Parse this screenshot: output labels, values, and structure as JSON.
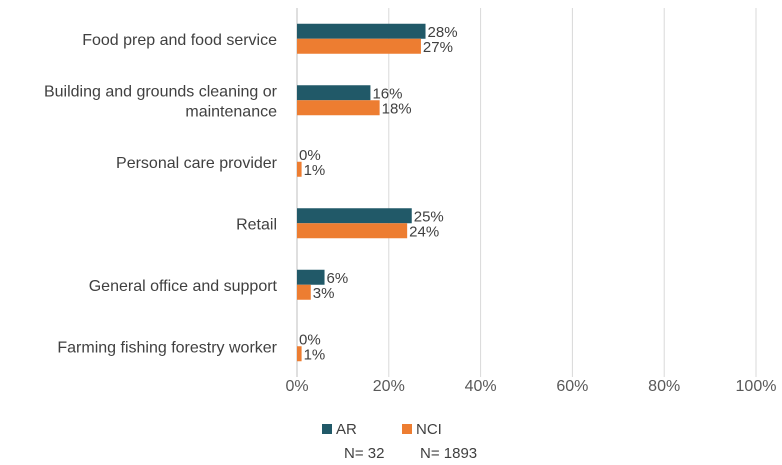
{
  "chart_data": {
    "type": "bar",
    "orientation": "horizontal",
    "categories": [
      [
        "Food prep and food service"
      ],
      [
        "Building and grounds cleaning or",
        "maintenance"
      ],
      [
        "Personal care provider"
      ],
      [
        "Retail"
      ],
      [
        "General office and support"
      ],
      [
        "Farming fishing forestry worker"
      ]
    ],
    "series": [
      {
        "name": "AR",
        "color": "#215968",
        "values": [
          28,
          16,
          0,
          25,
          6,
          0
        ],
        "labels": [
          "28%",
          "16%",
          "0%",
          "25%",
          "6%",
          "0%"
        ]
      },
      {
        "name": "NCI",
        "color": "#ED7D31",
        "values": [
          27,
          18,
          1,
          24,
          3,
          1
        ],
        "labels": [
          "27%",
          "18%",
          "1%",
          "24%",
          "3%",
          "1%"
        ]
      }
    ],
    "xlim": [
      0,
      100
    ],
    "x_ticks": [
      "0%",
      "20%",
      "40%",
      "60%",
      "80%",
      "100%"
    ],
    "grid": true,
    "legend_position": "bottom",
    "legend_notes": [
      "N= 32",
      "N= 1893"
    ]
  }
}
